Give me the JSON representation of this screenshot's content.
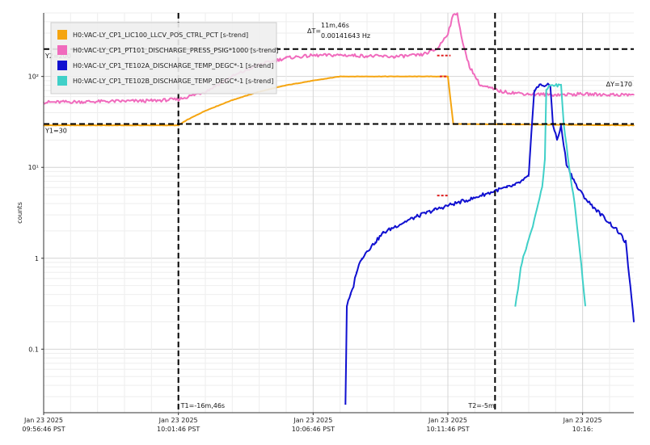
{
  "chart_data": {
    "type": "line",
    "ylabel": "counts",
    "yscale": "log",
    "ylim": [
      0.02,
      500
    ],
    "xlim_minutes": [
      0,
      21.9
    ],
    "grid": true,
    "legend_placement": "top-left",
    "y_ticks": [
      {
        "value": 0.1,
        "label": "0.1"
      },
      {
        "value": 1,
        "label": "1"
      },
      {
        "value": 10,
        "label": "10¹"
      },
      {
        "value": 100,
        "label": "10²"
      }
    ],
    "x_ticks": [
      {
        "minute": 0,
        "date": "Jan 23 2025",
        "time": "09:56:46 PST"
      },
      {
        "minute": 5,
        "date": "Jan 23 2025",
        "time": "10:01:46 PST"
      },
      {
        "minute": 10,
        "date": "Jan 23 2025",
        "time": "10:06:46 PST"
      },
      {
        "minute": 15,
        "date": "Jan 23 2025",
        "time": "10:11:46 PST"
      },
      {
        "minute": 20,
        "date": "Jan 23 2025",
        "time": "10:16:"
      }
    ],
    "series": [
      {
        "name": "H0:VAC-LY_CP1_LIC100_LLCV_POS_CTRL_PCT [s-trend]",
        "color": "#f5a511",
        "points": [
          [
            0,
            29
          ],
          [
            5,
            29
          ],
          [
            5.3,
            33
          ],
          [
            6,
            42
          ],
          [
            7,
            55
          ],
          [
            8,
            68
          ],
          [
            9,
            80
          ],
          [
            10,
            90
          ],
          [
            11,
            100
          ],
          [
            14.8,
            100
          ],
          [
            15,
            100
          ],
          [
            15.2,
            30
          ],
          [
            21.9,
            29
          ]
        ]
      },
      {
        "name": "H0:VAC-LY_CP1_PT101_DISCHARGE_PRESS_PSIG*1000 [s-trend]",
        "color": "#f06bbd",
        "points": [
          [
            0,
            52
          ],
          [
            2,
            53
          ],
          [
            4,
            54
          ],
          [
            5,
            56
          ],
          [
            6,
            68
          ],
          [
            7,
            100
          ],
          [
            8,
            135
          ],
          [
            9,
            160
          ],
          [
            10,
            170
          ],
          [
            11,
            172
          ],
          [
            12,
            168
          ],
          [
            13,
            165
          ],
          [
            14,
            172
          ],
          [
            14.6,
            200
          ],
          [
            15.0,
            300
          ],
          [
            15.2,
            470
          ],
          [
            15.35,
            500
          ],
          [
            15.55,
            230
          ],
          [
            15.8,
            130
          ],
          [
            16.2,
            80
          ],
          [
            17,
            68
          ],
          [
            18,
            64
          ],
          [
            19,
            63
          ],
          [
            20,
            64
          ],
          [
            21,
            63
          ],
          [
            21.9,
            63
          ]
        ]
      },
      {
        "name": "H0:VAC-LY_CP1_TE102A_DISCHARGE_TEMP_DEGC*-1 [s-trend]",
        "color": "#1010d0",
        "points": [
          [
            11.2,
            0.025
          ],
          [
            11.25,
            0.3
          ],
          [
            11.4,
            0.4
          ],
          [
            11.5,
            0.5
          ],
          [
            11.6,
            0.7
          ],
          [
            11.8,
            1.0
          ],
          [
            12,
            1.2
          ],
          [
            12.3,
            1.5
          ],
          [
            12.6,
            1.9
          ],
          [
            13,
            2.2
          ],
          [
            13.5,
            2.6
          ],
          [
            14,
            3.0
          ],
          [
            14.5,
            3.4
          ],
          [
            15,
            3.8
          ],
          [
            15.5,
            4.2
          ],
          [
            16,
            4.6
          ],
          [
            16.2,
            4.9
          ],
          [
            16.4,
            5.1
          ],
          [
            16.6,
            5.3
          ],
          [
            16.8,
            5.6
          ],
          [
            17.2,
            6.0
          ],
          [
            17.5,
            6.4
          ],
          [
            17.8,
            7.2
          ],
          [
            18,
            8.0
          ],
          [
            18.2,
            70
          ],
          [
            18.4,
            80
          ],
          [
            18.8,
            80
          ],
          [
            18.9,
            30
          ],
          [
            19.05,
            20
          ],
          [
            19.2,
            28
          ],
          [
            19.4,
            11
          ],
          [
            19.8,
            6.0
          ],
          [
            20.2,
            4.2
          ],
          [
            20.8,
            2.8
          ],
          [
            21.3,
            2.0
          ],
          [
            21.6,
            1.5
          ],
          [
            21.9,
            0.2
          ]
        ]
      },
      {
        "name": "H0:VAC-LY_CP1_TE102B_DISCHARGE_TEMP_DEGC*-1 [s-trend]",
        "color": "#40d0c8",
        "points": [
          [
            17.5,
            0.3
          ],
          [
            17.6,
            0.45
          ],
          [
            17.7,
            0.8
          ],
          [
            17.9,
            1.3
          ],
          [
            18.1,
            2.0
          ],
          [
            18.3,
            3.5
          ],
          [
            18.5,
            6.0
          ],
          [
            18.6,
            12
          ],
          [
            18.65,
            70
          ],
          [
            18.8,
            80
          ],
          [
            19.2,
            80
          ],
          [
            19.3,
            30
          ],
          [
            19.5,
            10
          ],
          [
            19.7,
            4.0
          ],
          [
            19.9,
            1.2
          ],
          [
            20.1,
            0.3
          ]
        ]
      }
    ],
    "cursors": {
      "y1": {
        "value": 30,
        "label": "Y1=30"
      },
      "y2": {
        "value": 200,
        "label": "Y2=200"
      },
      "dy_label": "ΔY=170",
      "t1": {
        "minute": 5,
        "label": "T1=-16m,46s"
      },
      "t2": {
        "minute": 16.75,
        "label": "T2=-5m"
      },
      "dt_prefix": "ΔT=",
      "dt_value": "11m,46s",
      "dt_freq": "0.00141643 Hz"
    }
  }
}
